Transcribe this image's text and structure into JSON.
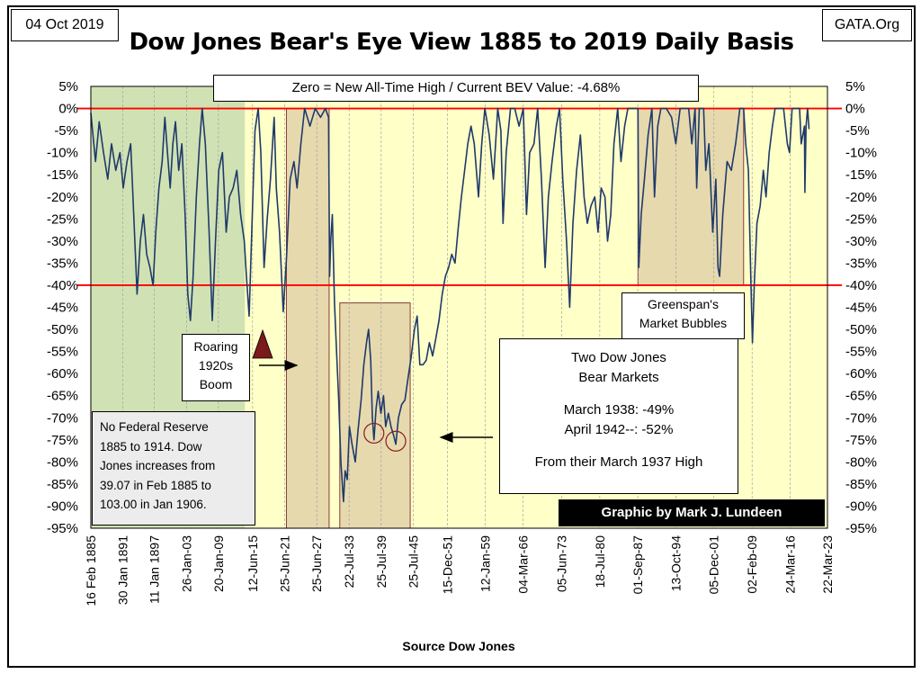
{
  "header": {
    "date": "04 Oct 2019",
    "site": "GATA.Org",
    "title": "Dow Jones Bear's Eye View 1885 to 2019 Daily Basis"
  },
  "annotations": {
    "zero_note": "Zero = New All-Time High / Current BEV Value: -4.68%",
    "greenspan_line1": "Greenspan's",
    "greenspan_line2": "Market Bubbles",
    "roaring_line1": "Roaring",
    "roaring_line2": "1920s",
    "roaring_line3": "Boom",
    "fed_lines": [
      "No Federal Reserve",
      "1885  to 1914.  Dow",
      "Jones increases from",
      "39.07  in Feb 1885  to",
      "103.00  in Jan 1906."
    ],
    "bear_title1": "Two Dow Jones",
    "bear_title2": "Bear Markets",
    "bear_1938": "March 1938: -49%",
    "bear_1942": "April 1942--: -52%",
    "bear_from": "From their March 1937 High",
    "credit": "Graphic by Mark J. Lundeen"
  },
  "chart_data": {
    "type": "line",
    "title": "Dow Jones Bear's Eye View 1885 to 2019 Daily Basis",
    "xlabel": "Source Dow Jones",
    "ylabel": "",
    "ylim": [
      -95,
      5
    ],
    "xlim": [
      "1885-02-16",
      "2023-03-22"
    ],
    "y_ticks": [
      5,
      0,
      -5,
      -10,
      -15,
      -20,
      -25,
      -30,
      -35,
      -40,
      -45,
      -50,
      -55,
      -60,
      -65,
      -70,
      -75,
      -80,
      -85,
      -90,
      -95
    ],
    "y_tick_labels": [
      "5%",
      "0%",
      "-5%",
      "-10%",
      "-15%",
      "-20%",
      "-25%",
      "-30%",
      "-35%",
      "-40%",
      "-45%",
      "-50%",
      "-55%",
      "-60%",
      "-65%",
      "-70%",
      "-75%",
      "-80%",
      "-85%",
      "-90%",
      "-95%"
    ],
    "x_tick_labels": [
      "16 Feb 1885",
      "30 Jan 1891",
      "11 Jan 1897",
      "26-Jan-03",
      "20-Jan-09",
      "12-Jun-15",
      "25-Jun-21",
      "25-Jun-27",
      "22-Jul-33",
      "25-Jul-39",
      "25-Jul-45",
      "15-Dec-51",
      "12-Jan-59",
      "04-Mar-66",
      "05-Jun-73",
      "18-Jul-80",
      "01-Sep-87",
      "13-Oct-94",
      "05-Dec-01",
      "02-Feb-09",
      "24-Mar-16",
      "22-Mar-23"
    ],
    "x_tick_years": [
      1885.13,
      1891.08,
      1897.03,
      1903.07,
      1909.05,
      1915.45,
      1921.48,
      1927.48,
      1933.55,
      1939.56,
      1945.56,
      1951.95,
      1959.03,
      1966.17,
      1973.43,
      1980.54,
      1987.67,
      1994.78,
      2001.93,
      2009.09,
      2016.23,
      2023.22
    ],
    "reference_lines": [
      0,
      -40
    ],
    "reference_color": "#ff0000",
    "series_color": "#1f3a6b",
    "plot_background": "#ffffc8",
    "green_shade_color": "#c8ddb0",
    "tan_shade_color": "#e0cfa8",
    "shaded_regions": [
      {
        "kind": "green",
        "x": [
          1885.13,
          1914.0
        ],
        "y": [
          5,
          -95
        ]
      },
      {
        "kind": "tan",
        "x": [
          1921.8,
          1929.8
        ],
        "y": [
          0,
          -95
        ]
      },
      {
        "kind": "tan",
        "x": [
          1931.8,
          1945.0
        ],
        "y": [
          -44,
          -95
        ]
      },
      {
        "kind": "tan",
        "x": [
          1987.7,
          2007.5
        ],
        "y": [
          0,
          -40
        ]
      }
    ],
    "circles": [
      {
        "x": 1938.2,
        "y": -73.5
      },
      {
        "x": 1942.3,
        "y": -75.3
      }
    ],
    "series": [
      {
        "name": "",
        "points": [
          [
            1885.13,
            -1
          ],
          [
            1886.0,
            -12
          ],
          [
            1886.7,
            -3
          ],
          [
            1887.5,
            -10
          ],
          [
            1888.3,
            -16
          ],
          [
            1889.0,
            -8
          ],
          [
            1889.8,
            -14
          ],
          [
            1890.6,
            -10
          ],
          [
            1891.2,
            -18
          ],
          [
            1891.9,
            -12
          ],
          [
            1892.6,
            -8
          ],
          [
            1893.3,
            -28
          ],
          [
            1893.8,
            -42
          ],
          [
            1894.4,
            -30
          ],
          [
            1895.0,
            -24
          ],
          [
            1895.6,
            -33
          ],
          [
            1896.2,
            -36
          ],
          [
            1896.8,
            -40
          ],
          [
            1897.3,
            -28
          ],
          [
            1897.9,
            -18
          ],
          [
            1898.5,
            -12
          ],
          [
            1899.0,
            -2
          ],
          [
            1899.5,
            -10
          ],
          [
            1900.0,
            -18
          ],
          [
            1900.5,
            -8
          ],
          [
            1901.0,
            -3
          ],
          [
            1901.6,
            -14
          ],
          [
            1902.2,
            -8
          ],
          [
            1902.8,
            -24
          ],
          [
            1903.3,
            -42
          ],
          [
            1903.8,
            -48
          ],
          [
            1904.3,
            -38
          ],
          [
            1904.9,
            -20
          ],
          [
            1905.5,
            -8
          ],
          [
            1906.0,
            0
          ],
          [
            1906.6,
            -8
          ],
          [
            1907.3,
            -28
          ],
          [
            1907.9,
            -48
          ],
          [
            1908.5,
            -30
          ],
          [
            1909.1,
            -14
          ],
          [
            1909.8,
            -10
          ],
          [
            1910.5,
            -28
          ],
          [
            1911.1,
            -20
          ],
          [
            1911.8,
            -18
          ],
          [
            1912.5,
            -14
          ],
          [
            1913.2,
            -24
          ],
          [
            1913.9,
            -30
          ],
          [
            1914.3,
            -38
          ],
          [
            1914.8,
            -47
          ],
          [
            1915.3,
            -28
          ],
          [
            1915.9,
            -5
          ],
          [
            1916.5,
            0
          ],
          [
            1917.0,
            -10
          ],
          [
            1917.6,
            -36
          ],
          [
            1918.2,
            -25
          ],
          [
            1918.8,
            -16
          ],
          [
            1919.5,
            -2
          ],
          [
            1919.9,
            -18
          ],
          [
            1920.5,
            -28
          ],
          [
            1921.2,
            -46
          ],
          [
            1921.8,
            -34
          ],
          [
            1922.5,
            -16
          ],
          [
            1923.2,
            -12
          ],
          [
            1923.8,
            -18
          ],
          [
            1924.5,
            -8
          ],
          [
            1925.2,
            0
          ],
          [
            1926.2,
            -4
          ],
          [
            1927.2,
            0
          ],
          [
            1928.2,
            -2
          ],
          [
            1929.1,
            0
          ],
          [
            1929.7,
            -2
          ],
          [
            1929.9,
            -38
          ],
          [
            1930.1,
            -30
          ],
          [
            1930.4,
            -24
          ],
          [
            1930.8,
            -44
          ],
          [
            1931.2,
            -55
          ],
          [
            1931.6,
            -66
          ],
          [
            1932.0,
            -80
          ],
          [
            1932.5,
            -89
          ],
          [
            1932.8,
            -82
          ],
          [
            1933.2,
            -84
          ],
          [
            1933.6,
            -72
          ],
          [
            1934.1,
            -76
          ],
          [
            1934.7,
            -80
          ],
          [
            1935.2,
            -73
          ],
          [
            1935.8,
            -66
          ],
          [
            1936.3,
            -58
          ],
          [
            1936.8,
            -53
          ],
          [
            1937.2,
            -50
          ],
          [
            1937.6,
            -57
          ],
          [
            1937.9,
            -70
          ],
          [
            1938.2,
            -75
          ],
          [
            1938.6,
            -68
          ],
          [
            1939.0,
            -64
          ],
          [
            1939.5,
            -69
          ],
          [
            1940.0,
            -65
          ],
          [
            1940.4,
            -72
          ],
          [
            1940.9,
            -69
          ],
          [
            1941.4,
            -72
          ],
          [
            1941.9,
            -74
          ],
          [
            1942.3,
            -76
          ],
          [
            1942.8,
            -70
          ],
          [
            1943.4,
            -67
          ],
          [
            1944.0,
            -66
          ],
          [
            1944.6,
            -61
          ],
          [
            1945.2,
            -56
          ],
          [
            1945.8,
            -50
          ],
          [
            1946.3,
            -47
          ],
          [
            1946.8,
            -58
          ],
          [
            1947.4,
            -58
          ],
          [
            1948.0,
            -57
          ],
          [
            1948.6,
            -53
          ],
          [
            1949.2,
            -56
          ],
          [
            1949.8,
            -52
          ],
          [
            1950.4,
            -48
          ],
          [
            1951.0,
            -42
          ],
          [
            1951.6,
            -38
          ],
          [
            1952.2,
            -36
          ],
          [
            1952.8,
            -33
          ],
          [
            1953.4,
            -35
          ],
          [
            1954.0,
            -27
          ],
          [
            1954.6,
            -20
          ],
          [
            1955.2,
            -14
          ],
          [
            1955.8,
            -8
          ],
          [
            1956.4,
            -4
          ],
          [
            1957.0,
            -8
          ],
          [
            1957.8,
            -20
          ],
          [
            1958.4,
            -8
          ],
          [
            1959.0,
            0
          ],
          [
            1959.8,
            -6
          ],
          [
            1960.6,
            -16
          ],
          [
            1961.4,
            0
          ],
          [
            1962.0,
            -5
          ],
          [
            1962.4,
            -26
          ],
          [
            1963.0,
            -10
          ],
          [
            1963.8,
            0
          ],
          [
            1964.6,
            0
          ],
          [
            1965.4,
            -4
          ],
          [
            1966.2,
            0
          ],
          [
            1966.8,
            -24
          ],
          [
            1967.4,
            -10
          ],
          [
            1968.2,
            -8
          ],
          [
            1968.9,
            0
          ],
          [
            1969.6,
            -16
          ],
          [
            1970.3,
            -36
          ],
          [
            1970.9,
            -20
          ],
          [
            1971.6,
            -12
          ],
          [
            1972.4,
            -4
          ],
          [
            1973.0,
            0
          ],
          [
            1973.6,
            -16
          ],
          [
            1974.3,
            -30
          ],
          [
            1974.9,
            -45
          ],
          [
            1975.5,
            -26
          ],
          [
            1976.2,
            -14
          ],
          [
            1976.9,
            -6
          ],
          [
            1977.6,
            -20
          ],
          [
            1978.2,
            -26
          ],
          [
            1978.9,
            -22
          ],
          [
            1979.6,
            -20
          ],
          [
            1980.2,
            -28
          ],
          [
            1980.8,
            -18
          ],
          [
            1981.5,
            -20
          ],
          [
            1982.0,
            -30
          ],
          [
            1982.6,
            -24
          ],
          [
            1983.2,
            -8
          ],
          [
            1983.9,
            0
          ],
          [
            1984.5,
            -12
          ],
          [
            1985.2,
            -4
          ],
          [
            1985.8,
            0
          ],
          [
            1986.5,
            0
          ],
          [
            1987.2,
            0
          ],
          [
            1987.7,
            0
          ],
          [
            1987.85,
            -36
          ],
          [
            1988.3,
            -24
          ],
          [
            1988.9,
            -16
          ],
          [
            1989.6,
            -6
          ],
          [
            1990.3,
            0
          ],
          [
            1990.8,
            -20
          ],
          [
            1991.4,
            -4
          ],
          [
            1992.0,
            0
          ],
          [
            1993.0,
            0
          ],
          [
            1994.0,
            -2
          ],
          [
            1994.8,
            -8
          ],
          [
            1995.6,
            0
          ],
          [
            1996.4,
            0
          ],
          [
            1997.2,
            0
          ],
          [
            1997.8,
            -8
          ],
          [
            1998.4,
            0
          ],
          [
            1998.7,
            -18
          ],
          [
            1999.2,
            0
          ],
          [
            2000.0,
            0
          ],
          [
            2000.4,
            -14
          ],
          [
            2001.0,
            -8
          ],
          [
            2001.7,
            -28
          ],
          [
            2002.3,
            -16
          ],
          [
            2002.7,
            -36
          ],
          [
            2003.0,
            -38
          ],
          [
            2003.6,
            -24
          ],
          [
            2004.4,
            -12
          ],
          [
            2005.2,
            -14
          ],
          [
            2006.0,
            -8
          ],
          [
            2006.8,
            0
          ],
          [
            2007.5,
            0
          ],
          [
            2007.9,
            -8
          ],
          [
            2008.4,
            -14
          ],
          [
            2008.8,
            -36
          ],
          [
            2009.0,
            -46
          ],
          [
            2009.15,
            -53
          ],
          [
            2009.5,
            -40
          ],
          [
            2010.0,
            -26
          ],
          [
            2010.6,
            -22
          ],
          [
            2011.2,
            -14
          ],
          [
            2011.7,
            -20
          ],
          [
            2012.3,
            -10
          ],
          [
            2012.9,
            -4
          ],
          [
            2013.4,
            0
          ],
          [
            2014.2,
            0
          ],
          [
            2015.0,
            0
          ],
          [
            2015.7,
            -8
          ],
          [
            2016.1,
            -10
          ],
          [
            2016.6,
            0
          ],
          [
            2017.4,
            0
          ],
          [
            2018.0,
            0
          ],
          [
            2018.3,
            -8
          ],
          [
            2018.9,
            -4
          ],
          [
            2018.98,
            -19
          ],
          [
            2019.2,
            -4
          ],
          [
            2019.5,
            0
          ],
          [
            2019.76,
            -4.68
          ]
        ]
      }
    ]
  }
}
